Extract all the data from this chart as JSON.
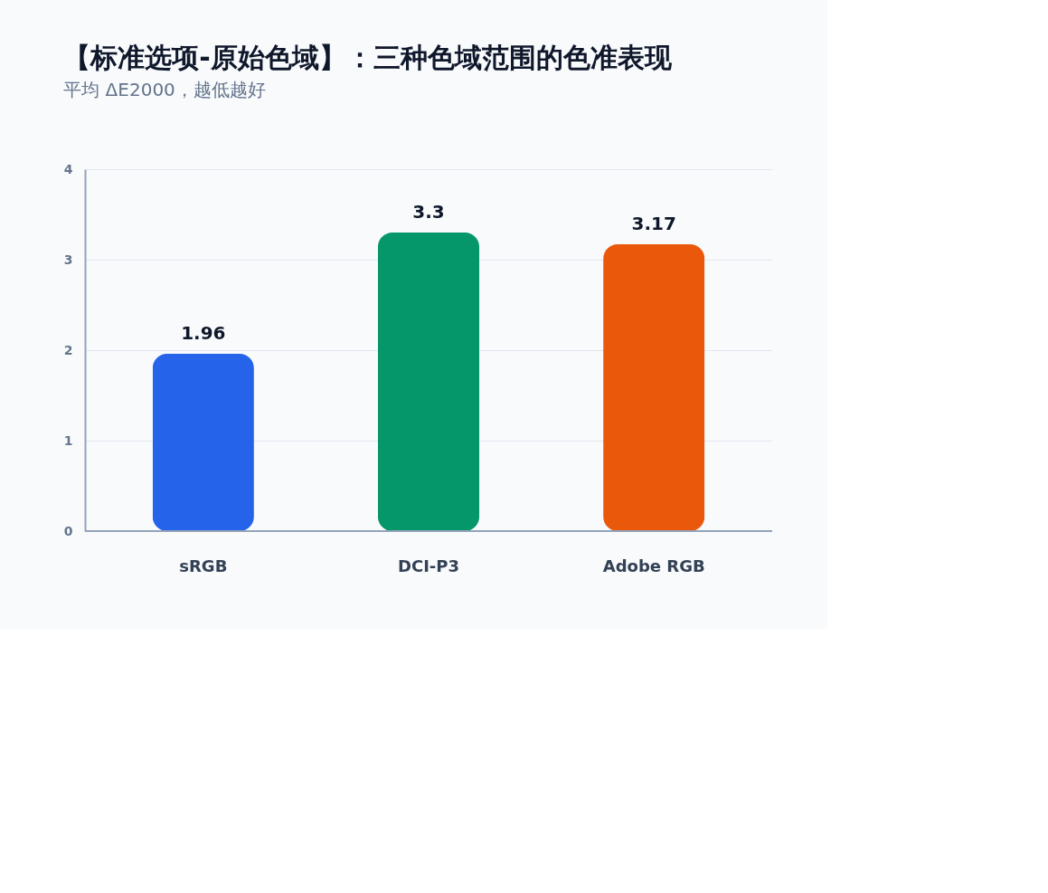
{
  "chart_data": {
    "type": "bar",
    "title": "【标准选项-原始色域】：三种色域范围的色准表现",
    "subtitle": "平均 ΔE2000，越低越好",
    "categories": [
      "sRGB",
      "DCI-P3",
      "Adobe RGB"
    ],
    "values": [
      1.96,
      3.3,
      3.17
    ],
    "colors": [
      "#2563eb",
      "#059669",
      "#ea580c"
    ],
    "ylim": [
      0,
      4
    ],
    "yticks": [
      0,
      1,
      2,
      3,
      4
    ],
    "grid": "y",
    "data_labels": true
  }
}
